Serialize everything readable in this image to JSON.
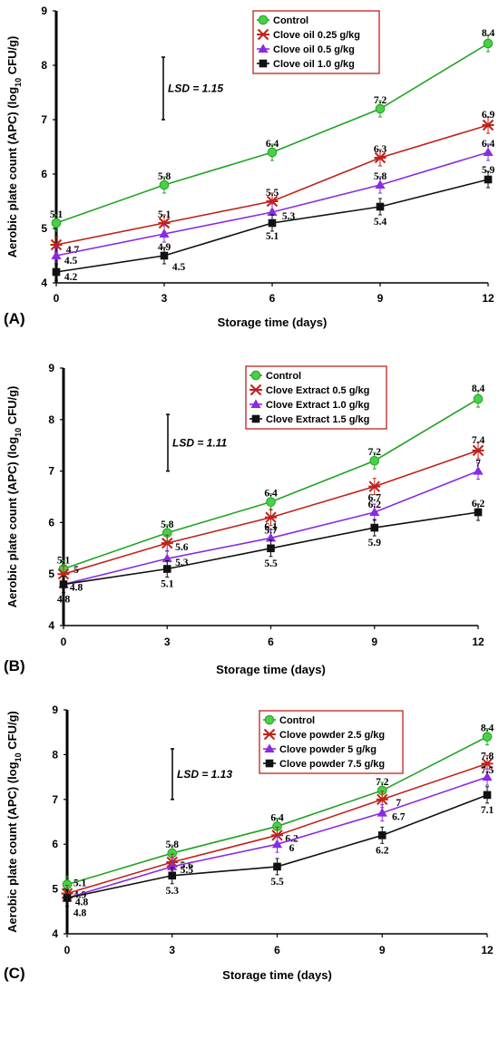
{
  "colors": {
    "control": "#21a321",
    "low": "#c0221b",
    "mid": "#8a2be2",
    "high": "#111111",
    "legend_border": "#c0221b",
    "control_marker": "#49d049"
  },
  "chart_data": [
    {
      "type": "line",
      "panel_label": "(A)",
      "xlabel": "Storage time (days)",
      "ylabel": "Aerobic plate count (APC) (log10 CFU/g)",
      "ylim": [
        4,
        9
      ],
      "y_ticks": [
        "4",
        "5",
        "6",
        "7",
        "8",
        "9"
      ],
      "x": [
        0,
        3,
        6,
        9,
        12
      ],
      "x_ticks": [
        "0",
        "3",
        "6",
        "9",
        "12"
      ],
      "lsd": "LSD = 1.15",
      "lsd_range": [
        7,
        8.15
      ],
      "series": [
        {
          "name": "Control",
          "marker": "circle",
          "values": [
            5.1,
            5.8,
            6.4,
            7.2,
            8.4
          ],
          "labels": [
            "5.1",
            "5.8",
            "6.4",
            "7.2",
            "8.4"
          ]
        },
        {
          "name": "Clove oil 0.25 g/kg",
          "marker": "star",
          "values": [
            4.7,
            5.1,
            5.5,
            6.3,
            6.9
          ],
          "labels": [
            "4.7",
            "5.1",
            "5.5",
            "6.3",
            "6.9"
          ]
        },
        {
          "name": "Clove oil 0.5 g/kg",
          "marker": "triangle",
          "values": [
            4.5,
            4.9,
            5.3,
            5.8,
            6.4
          ],
          "labels": [
            "4.5",
            "4.9",
            "5.3",
            "5.8",
            "6.4"
          ]
        },
        {
          "name": "Clove oil 1.0 g/kg",
          "marker": "square",
          "values": [
            4.2,
            4.5,
            5.1,
            5.4,
            5.9
          ],
          "labels": [
            "4.2",
            "4.5",
            "5.1",
            "5.4",
            "5.9"
          ]
        }
      ]
    },
    {
      "type": "line",
      "panel_label": "(B)",
      "xlabel": "Storage time (days)",
      "ylabel": "Aerobic plate count (APC) (log10 CFU/g)",
      "ylim": [
        4,
        9
      ],
      "y_ticks": [
        "4",
        "5",
        "6",
        "7",
        "8",
        "9"
      ],
      "x": [
        0,
        3,
        6,
        9,
        12
      ],
      "x_ticks": [
        "0",
        "3",
        "6",
        "9",
        "12"
      ],
      "lsd": "LSD = 1.11",
      "lsd_range": [
        7,
        8.1
      ],
      "series": [
        {
          "name": "Control",
          "marker": "circle",
          "values": [
            5.1,
            5.8,
            6.4,
            7.2,
            8.4
          ],
          "labels": [
            "5.1",
            "5.8",
            "6.4",
            "7.2",
            "8.4"
          ]
        },
        {
          "name": "Clove Extract 0.5 g/kg",
          "marker": "star",
          "values": [
            5.0,
            5.6,
            6.1,
            6.7,
            7.4
          ],
          "labels": [
            "5",
            "5.6",
            "6.1",
            "6.7",
            "7.4"
          ]
        },
        {
          "name": "Clove Extract 1.0 g/kg",
          "marker": "triangle",
          "values": [
            4.8,
            5.3,
            5.7,
            6.2,
            7.0
          ],
          "labels": [
            "4.8",
            "5.3",
            "5.7",
            "6.2",
            "7"
          ]
        },
        {
          "name": "Clove Extract 1.5 g/kg",
          "marker": "square",
          "values": [
            4.8,
            5.1,
            5.5,
            5.9,
            6.2
          ],
          "labels": [
            "4.8",
            "5.1",
            "5.5",
            "5.9",
            "6.2"
          ]
        }
      ]
    },
    {
      "type": "line",
      "panel_label": "(C)",
      "xlabel": "Storage time (days)",
      "ylabel": "Aerobic plate count (APC) (log10 CFU/g)",
      "ylim": [
        4,
        9
      ],
      "y_ticks": [
        "4",
        "5",
        "6",
        "7",
        "8",
        "9"
      ],
      "x": [
        0,
        3,
        6,
        9,
        12
      ],
      "x_ticks": [
        "0",
        "3",
        "6",
        "9",
        "12"
      ],
      "lsd": "LSD = 1.13",
      "lsd_range": [
        7,
        8.13
      ],
      "series": [
        {
          "name": "Control",
          "marker": "circle",
          "values": [
            5.1,
            5.8,
            6.4,
            7.2,
            8.4
          ],
          "labels": [
            "5.1",
            "5.8",
            "6.4",
            "7.2",
            "8.4"
          ]
        },
        {
          "name": "Clove powder 2.5 g/kg",
          "marker": "star",
          "values": [
            4.9,
            5.6,
            6.2,
            7.0,
            7.8
          ],
          "labels": [
            "4.9",
            "5.6",
            "6.2",
            "7",
            "7.8"
          ]
        },
        {
          "name": "Clove powder 5 g/kg",
          "marker": "triangle",
          "values": [
            4.8,
            5.5,
            6.0,
            6.7,
            7.5
          ],
          "labels": [
            "4.8",
            "5.5",
            "6",
            "6.7",
            "7.5"
          ]
        },
        {
          "name": "Clove powder 7.5 g/kg",
          "marker": "square",
          "values": [
            4.8,
            5.3,
            5.5,
            6.2,
            7.1
          ],
          "labels": [
            "4.8",
            "5.3",
            "5.5",
            "6.2",
            "7.1"
          ]
        }
      ]
    }
  ]
}
